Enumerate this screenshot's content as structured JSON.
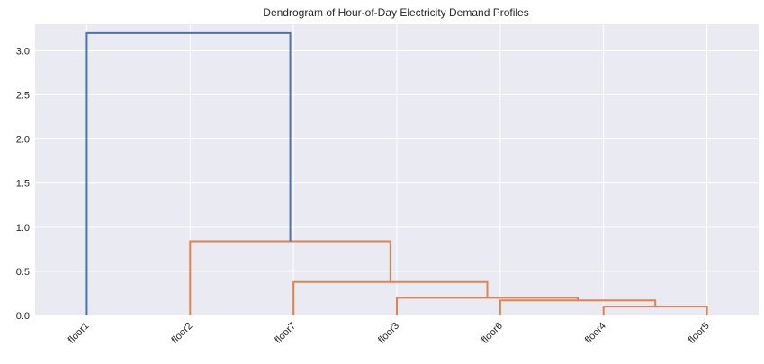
{
  "chart_data": {
    "type": "dendrogram",
    "title": "Dendrogram of Hour-of-Day Electricity Demand Profiles",
    "xlabel": "",
    "ylabel": "",
    "leaves": [
      "floor1",
      "floor2",
      "floor7",
      "floor3",
      "floor6",
      "floor4",
      "floor5"
    ],
    "ylim": [
      0,
      3.3
    ],
    "yticks": [
      0.0,
      0.5,
      1.0,
      1.5,
      2.0,
      2.5,
      3.0
    ],
    "ytick_labels": [
      "0.0",
      "0.5",
      "1.0",
      "1.5",
      "2.0",
      "2.5",
      "3.0"
    ],
    "grid": true,
    "merges": [
      {
        "left": "floor4",
        "right": "floor5",
        "height": 0.1,
        "color": "#dd8452"
      },
      {
        "left": "floor6",
        "right": "floor4+floor5",
        "height": 0.17,
        "color": "#dd8452"
      },
      {
        "left": "floor3",
        "right": "floor6+floor4+floor5",
        "height": 0.2,
        "color": "#dd8452"
      },
      {
        "left": "floor7",
        "right": "floor3+floor6+floor4+floor5",
        "height": 0.38,
        "color": "#dd8452"
      },
      {
        "left": "floor2",
        "right": "floor7+floor3+floor6+floor4+floor5",
        "height": 0.84,
        "color": "#dd8452"
      },
      {
        "left": "floor1",
        "right": "floor2+floor7+floor3+floor6+floor4+floor5",
        "height": 3.2,
        "color": "#4c72b0"
      }
    ],
    "colors": {
      "background": "#eaeaf2",
      "grid": "#ffffff",
      "cluster": "#dd8452",
      "root": "#4c72b0"
    }
  }
}
